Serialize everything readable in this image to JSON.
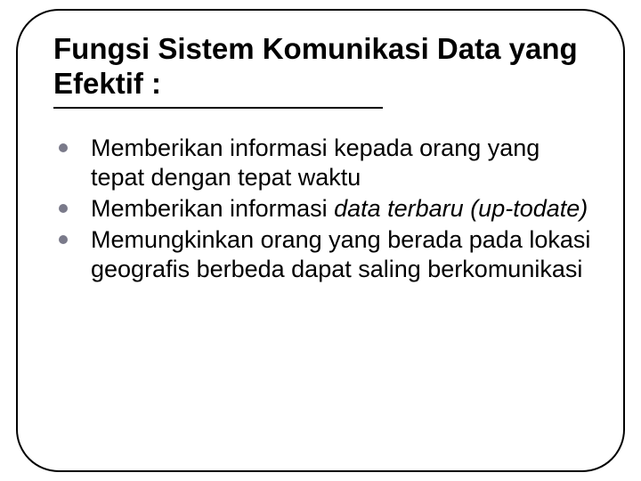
{
  "slide": {
    "title": "Fungsi Sistem Komunikasi Data yang Efektif :",
    "title_fontsize": 33,
    "title_fontweight": "bold",
    "title_color": "#000000",
    "underline_width": 370,
    "underline_color": "#000000",
    "frame_border_color": "#000000",
    "frame_border_radius": 48,
    "background_color": "#ffffff",
    "bullet_color": "#7a7a8a",
    "bullet_size": 10,
    "body_fontsize": 27,
    "body_color": "#000000",
    "items": [
      {
        "segments": [
          {
            "text": "Memberikan informasi kepada orang yang tepat dengan tepat waktu",
            "italic": false
          }
        ]
      },
      {
        "segments": [
          {
            "text": "Memberikan informasi ",
            "italic": false
          },
          {
            "text": "data terbaru (up-todate)",
            "italic": true
          }
        ]
      },
      {
        "segments": [
          {
            "text": "Memungkinkan orang yang berada pada lokasi geografis berbeda dapat saling berkomunikasi",
            "italic": false
          }
        ]
      }
    ]
  }
}
